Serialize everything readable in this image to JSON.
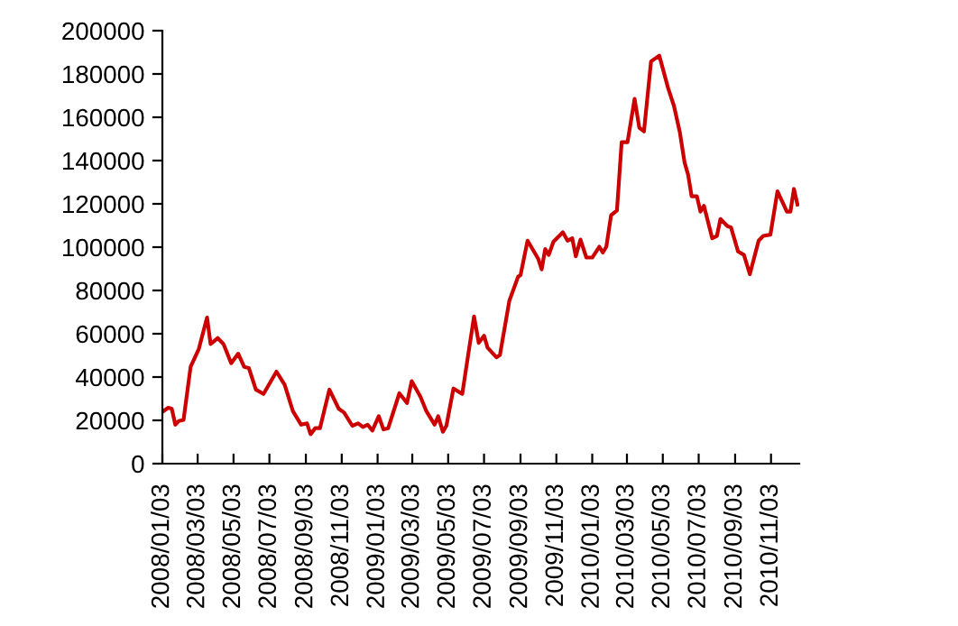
{
  "chart_data": {
    "type": "line",
    "grid": false,
    "legend": false,
    "marker": "none",
    "line_style": "solid",
    "ylim": [
      0,
      200000
    ],
    "yticks": [
      0,
      20000,
      40000,
      60000,
      80000,
      100000,
      120000,
      140000,
      160000,
      180000,
      200000
    ],
    "xlim": [
      "2008-01-03",
      "2010-12-21"
    ],
    "xticks": [
      {
        "value": "2008-01-03",
        "label": "2008/01/03"
      },
      {
        "value": "2008-03-03",
        "label": "2008/03/03"
      },
      {
        "value": "2008-05-03",
        "label": "2008/05/03"
      },
      {
        "value": "2008-07-03",
        "label": "2008/07/03"
      },
      {
        "value": "2008-09-03",
        "label": "2008/09/03"
      },
      {
        "value": "2008-11-03",
        "label": "2008/11/03"
      },
      {
        "value": "2009-01-03",
        "label": "2009/01/03"
      },
      {
        "value": "2009-03-03",
        "label": "2009/03/03"
      },
      {
        "value": "2009-05-03",
        "label": "2009/05/03"
      },
      {
        "value": "2009-07-03",
        "label": "2009/07/03"
      },
      {
        "value": "2009-09-03",
        "label": "2009/09/03"
      },
      {
        "value": "2009-11-03",
        "label": "2009/11/03"
      },
      {
        "value": "2010-01-03",
        "label": "2010/01/03"
      },
      {
        "value": "2010-03-03",
        "label": "2010/03/03"
      },
      {
        "value": "2010-05-03",
        "label": "2010/05/03"
      },
      {
        "value": "2010-07-03",
        "label": "2010/07/03"
      },
      {
        "value": "2010-09-03",
        "label": "2010/09/03"
      },
      {
        "value": "2010-11-03",
        "label": "2010/11/03"
      }
    ],
    "x": [
      "2008-01-03",
      "2008-01-13",
      "2008-01-19",
      "2008-01-25",
      "2008-01-31",
      "2008-02-08",
      "2008-02-20",
      "2008-03-05",
      "2008-03-19",
      "2008-03-25",
      "2008-04-06",
      "2008-04-16",
      "2008-04-29",
      "2008-05-11",
      "2008-05-21",
      "2008-05-29",
      "2008-06-10",
      "2008-06-23",
      "2008-07-15",
      "2008-07-29",
      "2008-08-12",
      "2008-08-26",
      "2008-09-05",
      "2008-09-11",
      "2008-09-19",
      "2008-09-27",
      "2008-10-13",
      "2008-10-29",
      "2008-11-07",
      "2008-11-21",
      "2008-12-01",
      "2008-12-09",
      "2008-12-17",
      "2008-12-25",
      "2009-01-05",
      "2009-01-13",
      "2009-01-21",
      "2009-02-09",
      "2009-02-22",
      "2009-03-02",
      "2009-03-17",
      "2009-03-27",
      "2009-04-10",
      "2009-04-16",
      "2009-04-24",
      "2009-04-30",
      "2009-05-12",
      "2009-05-27",
      "2009-06-06",
      "2009-06-16",
      "2009-06-24",
      "2009-07-03",
      "2009-07-09",
      "2009-07-24",
      "2009-07-30",
      "2009-08-15",
      "2009-08-30",
      "2009-09-03",
      "2009-09-15",
      "2009-10-03",
      "2009-10-09",
      "2009-10-15",
      "2009-10-21",
      "2009-10-29",
      "2009-11-14",
      "2009-11-22",
      "2009-11-30",
      "2009-12-06",
      "2009-12-14",
      "2009-12-24",
      "2010-01-03",
      "2010-01-15",
      "2010-01-21",
      "2010-01-27",
      "2010-02-04",
      "2010-02-14",
      "2010-02-22",
      "2010-03-04",
      "2010-03-16",
      "2010-03-24",
      "2010-04-01",
      "2010-04-13",
      "2010-04-27",
      "2010-05-12",
      "2010-05-22",
      "2010-06-01",
      "2010-06-09",
      "2010-06-15",
      "2010-06-21",
      "2010-06-30",
      "2010-07-06",
      "2010-07-12",
      "2010-07-26",
      "2010-08-03",
      "2010-08-09",
      "2010-08-21",
      "2010-08-27",
      "2010-09-08",
      "2010-09-18",
      "2010-09-28",
      "2010-10-13",
      "2010-10-21",
      "2010-11-02",
      "2010-11-14",
      "2010-11-30",
      "2010-12-06",
      "2010-12-12",
      "2010-12-18"
    ],
    "series": [
      {
        "color": "#cc0000",
        "values": [
          23900,
          25800,
          25300,
          18000,
          19700,
          20200,
          44700,
          53000,
          67500,
          55200,
          58000,
          55200,
          46400,
          50800,
          44700,
          44200,
          34200,
          32200,
          42500,
          36400,
          24200,
          18000,
          18600,
          13600,
          16400,
          16400,
          34200,
          25300,
          23600,
          17500,
          18600,
          16900,
          18000,
          15300,
          21900,
          15800,
          16400,
          32500,
          28000,
          38100,
          30800,
          24200,
          18000,
          21900,
          14700,
          17500,
          34700,
          32200,
          50200,
          68000,
          55800,
          59100,
          53600,
          49100,
          50200,
          75200,
          86400,
          87000,
          103000,
          94700,
          89700,
          99100,
          96400,
          102500,
          106900,
          103000,
          104100,
          95800,
          103500,
          95200,
          95200,
          100200,
          97500,
          100200,
          114700,
          116900,
          148500,
          148500,
          168500,
          155200,
          153500,
          185800,
          188500,
          173500,
          165200,
          153000,
          139100,
          133500,
          123500,
          123500,
          116400,
          119100,
          104100,
          105200,
          113000,
          109700,
          109100,
          98000,
          96400,
          87500,
          103000,
          105200,
          105800,
          125800,
          116400,
          116400,
          126900,
          119700
        ]
      }
    ]
  }
}
